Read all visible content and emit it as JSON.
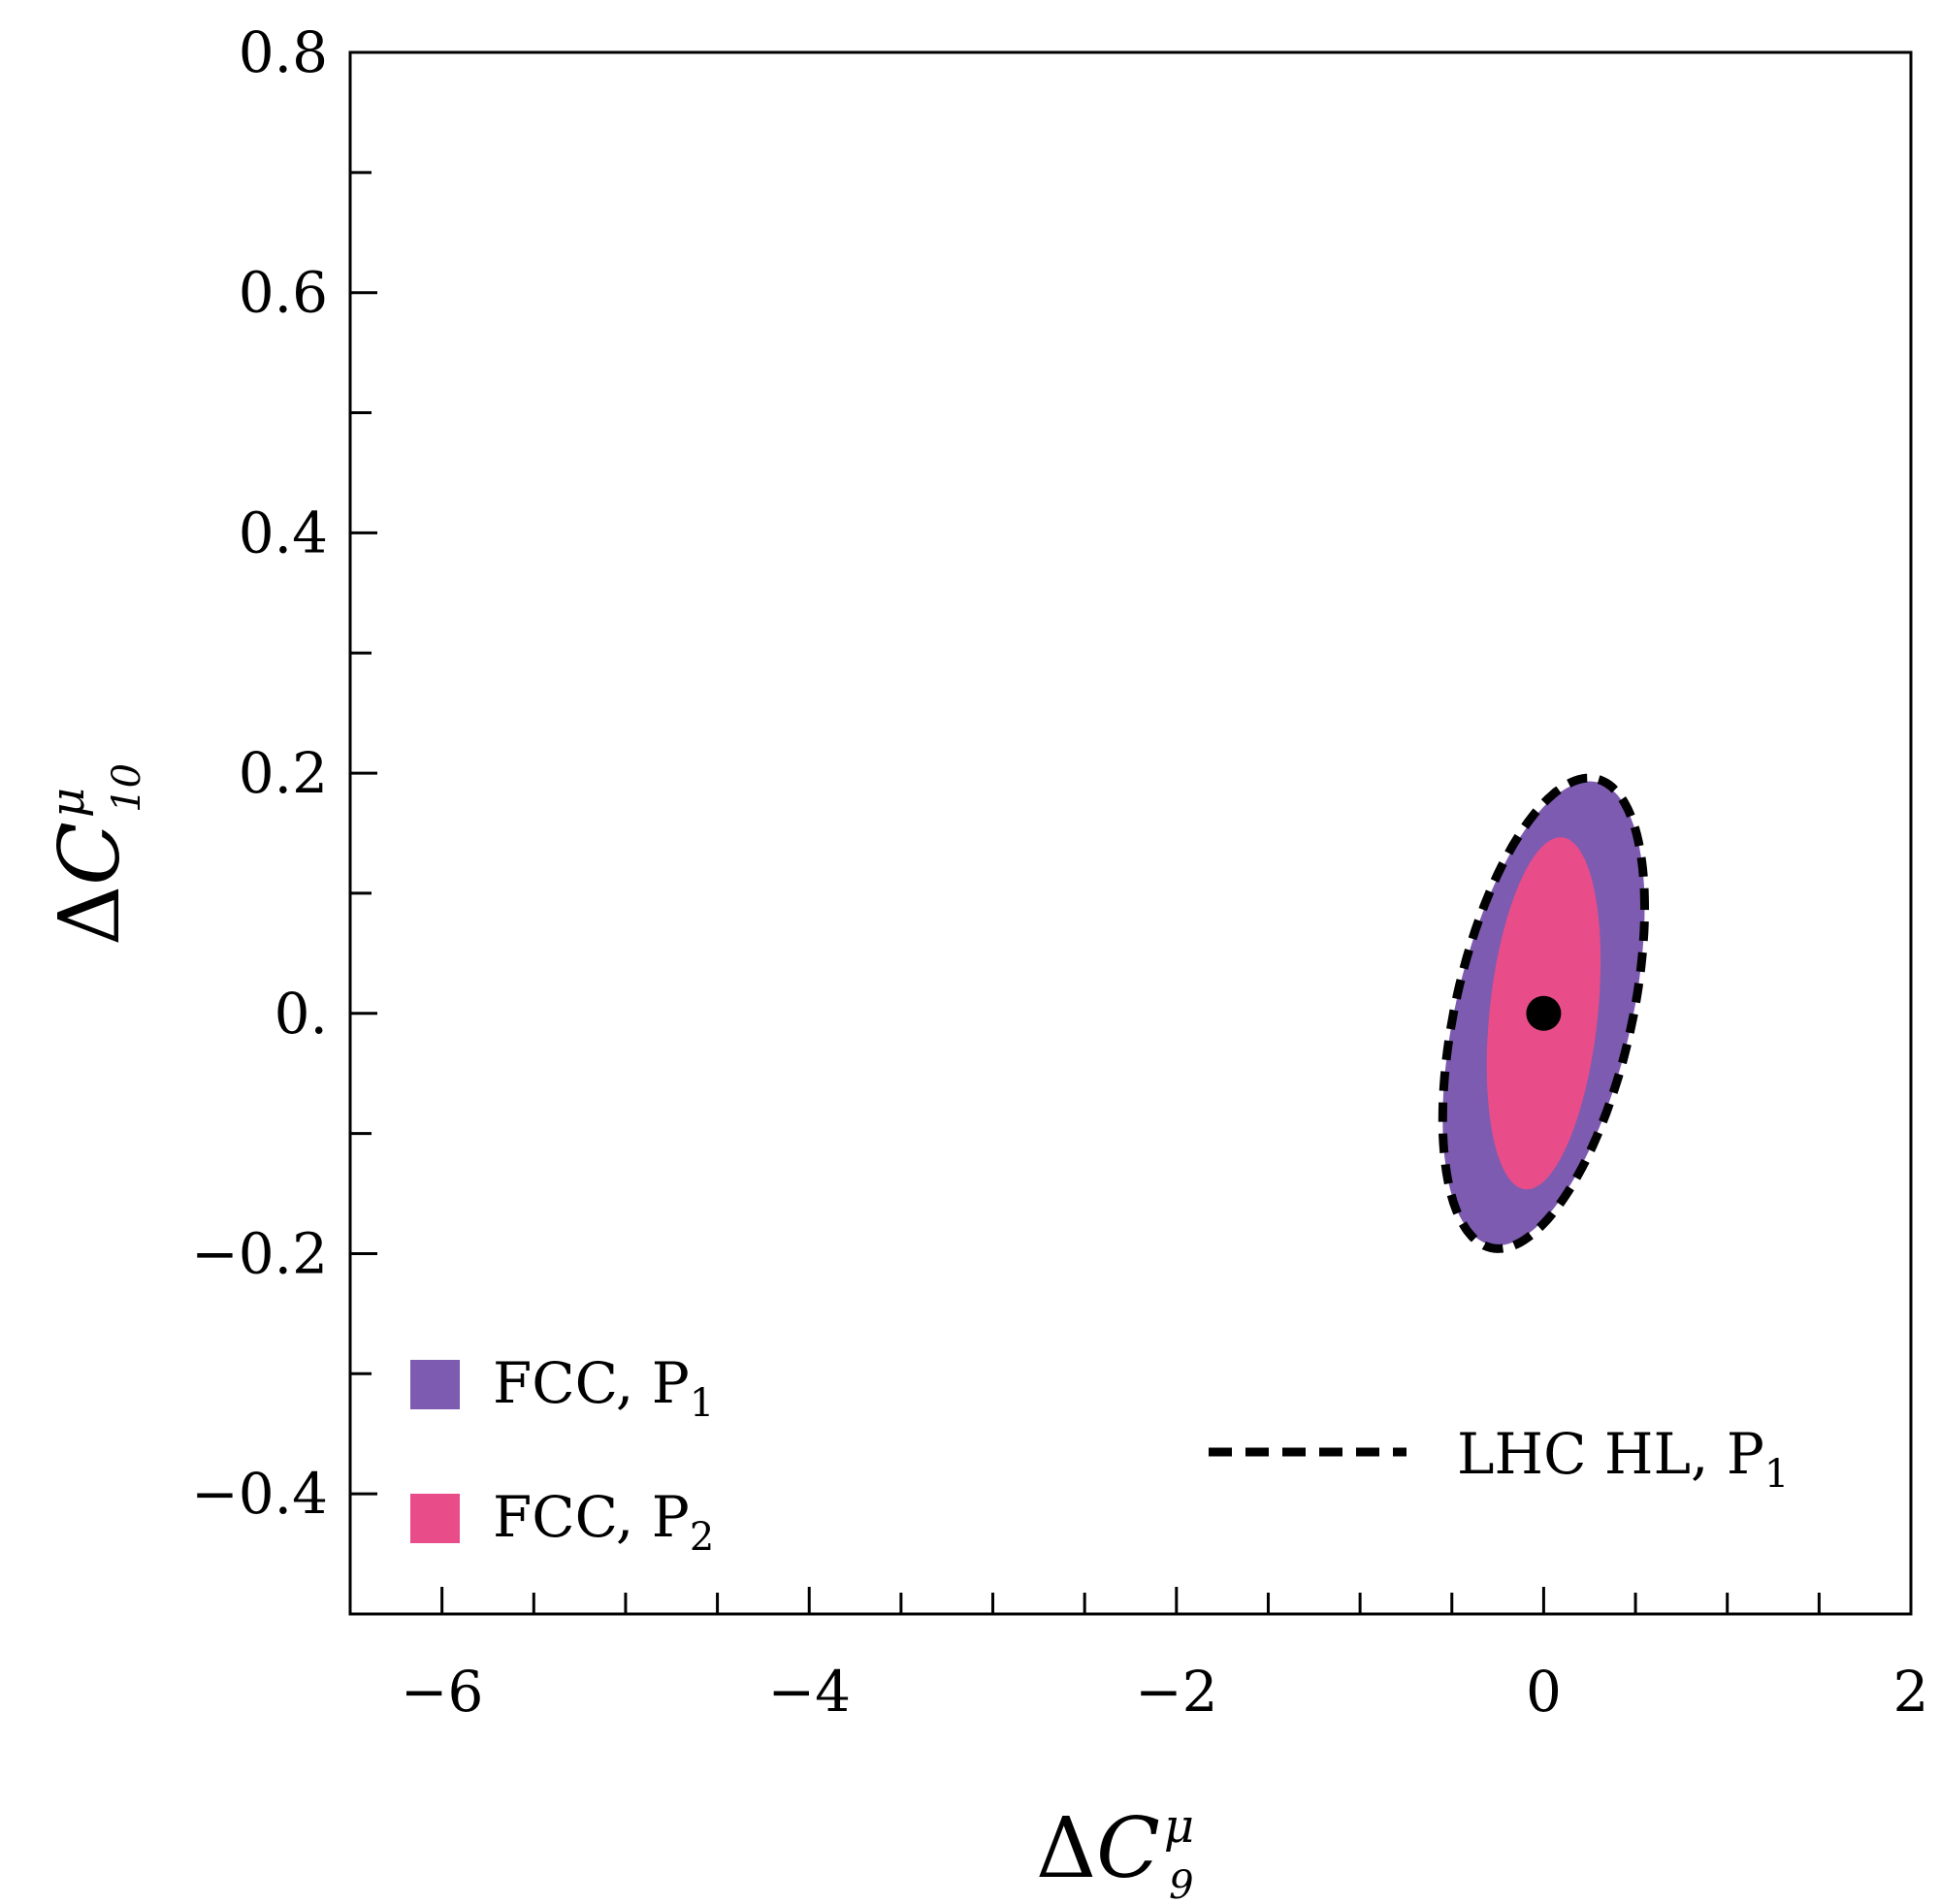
{
  "chart_data": {
    "type": "contour",
    "title": "",
    "xlabel": {
      "prefix": "Δ",
      "symbol": "C",
      "sub": "9",
      "sup": "μ"
    },
    "ylabel": {
      "prefix": "Δ",
      "symbol": "C",
      "sub": "10",
      "sup": "μ"
    },
    "xlim": [
      -6.5,
      2
    ],
    "ylim": [
      -0.5,
      0.8
    ],
    "x_ticks": [
      -6,
      -4,
      -2,
      0,
      2
    ],
    "x_tick_labels": [
      "−6",
      "−4",
      "−2",
      "0",
      "2"
    ],
    "x_minor_step": 0.5,
    "y_ticks": [
      -0.4,
      -0.2,
      0.0,
      0.2,
      0.4,
      0.6,
      0.8
    ],
    "y_tick_labels": [
      "−0.4",
      "−0.2",
      "0.",
      "0.2",
      "0.4",
      "0.6",
      "0.8"
    ],
    "y_minor_step": 0.1,
    "best_fit_point": {
      "x": 0.0,
      "y": 0.0
    },
    "series": [
      {
        "name": "LHC HL, P1",
        "label_text": "LHC HL, P",
        "label_sub": "1",
        "style": "dashed-line",
        "color": "#000000",
        "region": {
          "center": [
            0.0,
            0.0
          ],
          "semi_axis_x": 0.55,
          "semi_axis_y": 0.175,
          "tilt": 0.16
        }
      },
      {
        "name": "FCC, P1",
        "label_text": "FCC, P",
        "label_sub": "1",
        "style": "filled",
        "color": "#7d5bb0",
        "region": {
          "center": [
            0.0,
            0.0
          ],
          "semi_axis_x": 0.55,
          "semi_axis_y": 0.172,
          "tilt": 0.16
        }
      },
      {
        "name": "FCC, P2",
        "label_text": "FCC, P",
        "label_sub": "2",
        "style": "filled",
        "color": "#e84d8a",
        "region": {
          "center": [
            0.0,
            0.0
          ],
          "semi_axis_x": 0.31,
          "semi_axis_y": 0.14,
          "tilt": 0.14
        }
      }
    ],
    "legend": {
      "left_group": [
        "FCC, P1",
        "FCC, P2"
      ],
      "right_group": [
        "LHC HL, P1"
      ]
    }
  }
}
